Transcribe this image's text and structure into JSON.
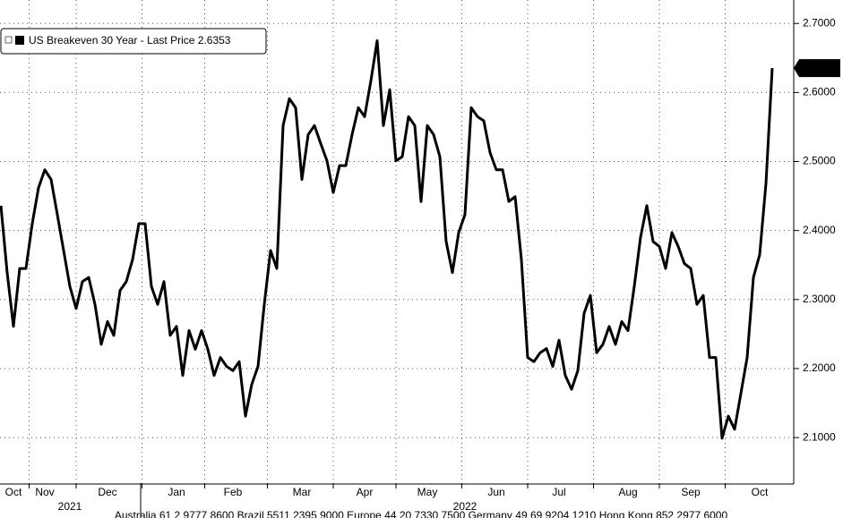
{
  "chart_data": {
    "type": "line",
    "categories": [
      null,
      null,
      "Oct",
      null,
      null,
      null,
      null,
      "Nov",
      null,
      null,
      null,
      null,
      null,
      null,
      null,
      null,
      null,
      "Dec",
      null,
      null,
      null,
      null,
      null,
      null,
      null,
      null,
      null,
      null,
      "Jan",
      null,
      null,
      null,
      null,
      null,
      null,
      null,
      null,
      "Feb",
      null,
      null,
      null,
      null,
      null,
      null,
      null,
      null,
      null,
      null,
      "Mar",
      null,
      null,
      null,
      null,
      null,
      null,
      null,
      null,
      null,
      "Apr",
      null,
      null,
      null,
      null,
      null,
      null,
      null,
      null,
      null,
      "May",
      null,
      null,
      null,
      null,
      null,
      null,
      null,
      null,
      null,
      null,
      "Jun",
      null,
      null,
      null,
      null,
      null,
      null,
      null,
      null,
      null,
      "Jul",
      null,
      null,
      null,
      null,
      null,
      null,
      null,
      null,
      null,
      null,
      "Aug",
      null,
      null,
      null,
      null,
      null,
      null,
      null,
      null,
      null,
      "Sep",
      null,
      null,
      null,
      null,
      null,
      null,
      null,
      null,
      null,
      null,
      "Oct",
      null,
      null
    ],
    "year_labels": [
      null,
      null,
      null,
      null,
      null,
      null,
      null,
      null,
      null,
      null,
      null,
      "2021",
      null,
      null,
      null,
      null,
      null,
      null,
      null,
      null,
      null,
      null,
      null,
      null,
      null,
      null,
      null,
      null,
      null,
      null,
      null,
      null,
      null,
      null,
      null,
      null,
      null,
      null,
      null,
      null,
      null,
      null,
      null,
      null,
      null,
      null,
      null,
      null,
      null,
      null,
      null,
      null,
      null,
      null,
      null,
      null,
      null,
      null,
      null,
      null,
      null,
      null,
      null,
      null,
      null,
      null,
      null,
      null,
      null,
      null,
      null,
      null,
      null,
      null,
      "2022",
      null,
      null,
      null,
      null,
      null,
      null,
      null,
      null,
      null,
      null,
      null,
      null,
      null,
      null,
      null,
      null,
      null,
      null,
      null,
      null,
      null,
      null,
      null,
      null,
      null,
      null,
      null,
      null,
      null,
      null,
      null,
      null,
      null,
      null,
      null,
      null,
      null,
      null,
      null,
      null,
      null,
      null,
      null,
      null,
      null,
      null,
      null,
      null,
      null
    ],
    "series": [
      {
        "name": "US Breakeven 30 Year - Last Price 2.6353",
        "color": "#000000",
        "values": [
          2.436,
          2.339,
          2.261,
          2.345,
          2.345,
          2.41,
          2.462,
          2.488,
          2.474,
          2.423,
          2.371,
          2.319,
          2.287,
          2.326,
          2.332,
          2.293,
          2.235,
          2.268,
          2.248,
          2.313,
          2.326,
          2.358,
          2.41,
          2.41,
          2.319,
          2.293,
          2.326,
          2.248,
          2.261,
          2.19,
          2.255,
          2.228,
          2.255,
          2.228,
          2.19,
          2.216,
          2.203,
          2.197,
          2.21,
          2.131,
          2.177,
          2.203,
          2.293,
          2.371,
          2.345,
          2.552,
          2.591,
          2.578,
          2.474,
          2.539,
          2.552,
          2.526,
          2.501,
          2.455,
          2.494,
          2.494,
          2.539,
          2.578,
          2.565,
          2.617,
          2.675,
          2.552,
          2.604,
          2.501,
          2.507,
          2.565,
          2.552,
          2.442,
          2.552,
          2.539,
          2.507,
          2.384,
          2.339,
          2.397,
          2.423,
          2.578,
          2.565,
          2.559,
          2.513,
          2.488,
          2.488,
          2.442,
          2.449,
          2.358,
          2.216,
          2.21,
          2.223,
          2.229,
          2.203,
          2.241,
          2.19,
          2.17,
          2.197,
          2.28,
          2.306,
          2.223,
          2.235,
          2.261,
          2.235,
          2.268,
          2.255,
          2.319,
          2.39,
          2.436,
          2.384,
          2.377,
          2.345,
          2.397,
          2.377,
          2.352,
          2.345,
          2.293,
          2.306,
          2.216,
          2.216,
          2.099,
          2.131,
          2.112,
          2.164,
          2.216,
          2.332,
          2.365,
          2.468,
          2.6353
        ]
      }
    ],
    "ylim": [
      2.034,
      2.734
    ],
    "yticks": [
      {
        "value": 2.1,
        "label": "2.1000"
      },
      {
        "value": 2.2,
        "label": "2.2000"
      },
      {
        "value": 2.3,
        "label": "2.3000"
      },
      {
        "value": 2.4,
        "label": "2.4000"
      },
      {
        "value": 2.5,
        "label": "2.5000"
      },
      {
        "value": 2.6,
        "label": "2.6000"
      },
      {
        "value": 2.7,
        "label": "2.7000"
      }
    ],
    "grid": true,
    "legend": "top-left",
    "footer": "Australia 61 2 9777 8600 Brazil 5511 2395 9000 Europe 44 20 7330 7500 Germany 49 69 9204 1210 Hong Kong 852 2977 6000"
  }
}
